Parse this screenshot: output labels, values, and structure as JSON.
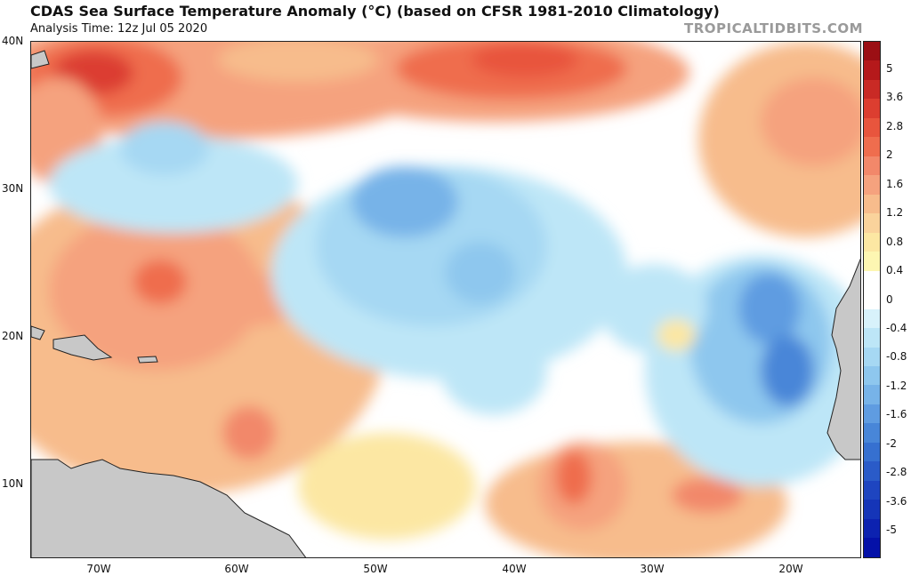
{
  "header": {
    "title": "CDAS Sea Surface Temperature Anomaly (°C) (based on CFSR 1981-2010 Climatology)",
    "analysis_time": "Analysis Time: 12z Jul 05 2020",
    "brand": "TROPICALTIDBITS.COM"
  },
  "axes": {
    "lat_labels": [
      "40N",
      "30N",
      "20N",
      "10N"
    ],
    "lon_labels": [
      "70W",
      "60W",
      "50W",
      "40W",
      "30W",
      "20W"
    ]
  },
  "colorbar": {
    "labels": [
      "5",
      "3.6",
      "2.8",
      "2",
      "1.6",
      "1.2",
      "0.8",
      "0.4",
      "0",
      "-0.4",
      "-0.8",
      "-1.2",
      "-1.6",
      "-2",
      "-2.8",
      "-3.6",
      "-5"
    ],
    "colors": [
      "#9b0f14",
      "#b5191b",
      "#c92a25",
      "#dc3e30",
      "#e8553d",
      "#ef6d4e",
      "#f2886a",
      "#f5a27e",
      "#f7bc8c",
      "#fad39c",
      "#fce7a3",
      "#fdf6b2",
      "#ffffff",
      "#ffffff",
      "#d8f2fb",
      "#bde6f7",
      "#a6d8f3",
      "#8ec7ee",
      "#77b3e8",
      "#5f9ce1",
      "#4886d8",
      "#3670d0",
      "#2a5bc8",
      "#1e45c0",
      "#1535b8",
      "#0c22b0",
      "#0411a8"
    ]
  },
  "map": {
    "land_color": "#c8c8c8",
    "ocean_neutral": "#ffffff"
  }
}
